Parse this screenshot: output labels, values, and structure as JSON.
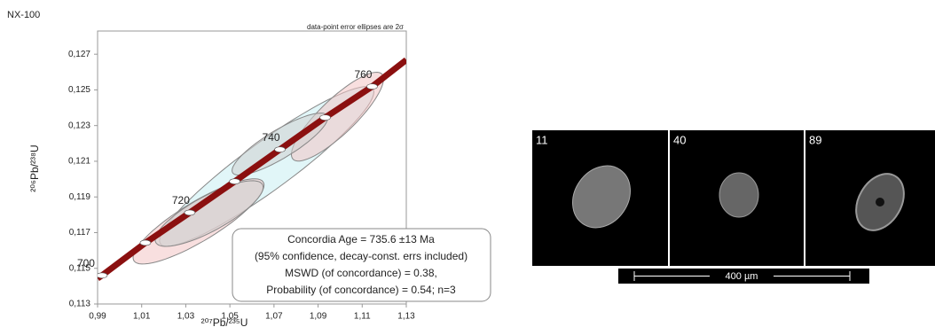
{
  "chart_data": {
    "type": "concordia",
    "title": "NX-100",
    "note": "data-point error ellipses are 2σ",
    "x_label": "²⁰⁷Pb/²³⁵U",
    "y_label": "²⁰⁶Pb/²³⁸U",
    "xlim": [
      0.99,
      1.13
    ],
    "ylim": [
      0.113,
      0.1283
    ],
    "xticks": [
      {
        "value": 0.99,
        "label": "0,99"
      },
      {
        "value": 1.01,
        "label": "1,01"
      },
      {
        "value": 1.03,
        "label": "1,03"
      },
      {
        "value": 1.05,
        "label": "1,05"
      },
      {
        "value": 1.07,
        "label": "1,07"
      },
      {
        "value": 1.09,
        "label": "1,09"
      },
      {
        "value": 1.11,
        "label": "1,11"
      },
      {
        "value": 1.13,
        "label": "1,13"
      }
    ],
    "yticks": [
      {
        "value": 0.113,
        "label": "0,113"
      },
      {
        "value": 0.115,
        "label": "0,115"
      },
      {
        "value": 0.117,
        "label": "0,117"
      },
      {
        "value": 0.119,
        "label": "0,119"
      },
      {
        "value": 0.121,
        "label": "0,121"
      },
      {
        "value": 0.123,
        "label": "0,123"
      },
      {
        "value": 0.125,
        "label": "0,125"
      },
      {
        "value": 0.127,
        "label": "0,127"
      }
    ],
    "curve": {
      "color": "#8b1010",
      "x": [
        0.99,
        0.992,
        1.0117,
        1.0318,
        1.0522,
        1.0727,
        1.0932,
        1.1145,
        1.13
      ],
      "y": [
        0.11444,
        0.1146,
        0.11643,
        0.11812,
        0.11987,
        0.12166,
        0.12345,
        0.12519,
        0.12668
      ]
    },
    "markers": {
      "x": [
        0.992,
        1.0117,
        1.0318,
        1.0522,
        1.0727,
        1.0932,
        1.1145
      ],
      "y": [
        0.1146,
        0.11643,
        0.11812,
        0.11987,
        0.12166,
        0.12345,
        0.12519
      ],
      "labels": [
        700,
        null,
        720,
        null,
        740,
        null,
        760
      ]
    },
    "ellipses": [
      {
        "x": 1.0667,
        "y": 0.12071,
        "sx": 0.0486,
        "sy": 0.00448,
        "rho": 0.93,
        "color": "#c8eef2"
      },
      {
        "x": 1.0358,
        "y": 0.11763,
        "sx": 0.0297,
        "sy": 0.00239,
        "rho": 0.85,
        "color": "#f2c4c4"
      },
      {
        "x": 1.0988,
        "y": 0.1235,
        "sx": 0.0209,
        "sy": 0.00249,
        "rho": 0.85,
        "color": "#f2c4c4"
      },
      {
        "x": 1.0406,
        "y": 0.11807,
        "sx": 0.0245,
        "sy": 0.00184,
        "rho": 0.8,
        "color": "#cfcfcf"
      },
      {
        "x": 1.0727,
        "y": 0.12196,
        "sx": 0.0217,
        "sy": 0.00174,
        "rho": 0.85,
        "color": "#cfcfcf"
      }
    ],
    "annotation": [
      "Concordia Age = 735.6 ±13 Ma",
      "(95% confidence, decay-const. errs included)",
      "MSWD (of concordance) = 0.38,",
      "Probability (of concordance) = 0.54; n=3"
    ]
  },
  "cl_images": {
    "labels": [
      "11",
      "40",
      "89"
    ],
    "scale_bar": "400 µm"
  }
}
